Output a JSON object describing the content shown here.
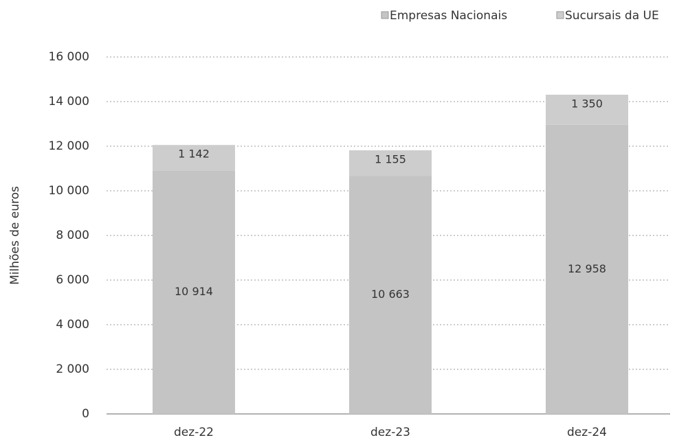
{
  "chart_data": {
    "type": "stacked_bar",
    "y_label": "Milhões de euros",
    "categories": [
      "dez-22",
      "dez-23",
      "dez-24"
    ],
    "series": [
      {
        "name": "Empresas Nacionais",
        "color": "#c4c4c4",
        "values": [
          10914,
          10663,
          12958
        ],
        "value_labels": [
          "10 914",
          "10 663",
          "12 958"
        ]
      },
      {
        "name": "Sucursais da UE",
        "color": "#cdcdcd",
        "values": [
          1142,
          1155,
          1350
        ],
        "value_labels": [
          "1 142",
          "1 155",
          "1 350"
        ]
      }
    ],
    "ylim": [
      0,
      16000
    ],
    "yticks": [
      0,
      {
        "value": 2000,
        "label": "2 000"
      },
      {
        "value": 4000,
        "label": "4 000"
      },
      {
        "value": 6000,
        "label": "6 000"
      },
      {
        "value": 8000,
        "label": "8 000"
      },
      {
        "value": 10000,
        "label": "10 000"
      },
      {
        "value": 12000,
        "label": "12 000"
      },
      {
        "value": 14000,
        "label": "14 000"
      },
      {
        "value": 16000,
        "label": "16 000"
      }
    ],
    "grid": true,
    "legend": "top-right"
  }
}
